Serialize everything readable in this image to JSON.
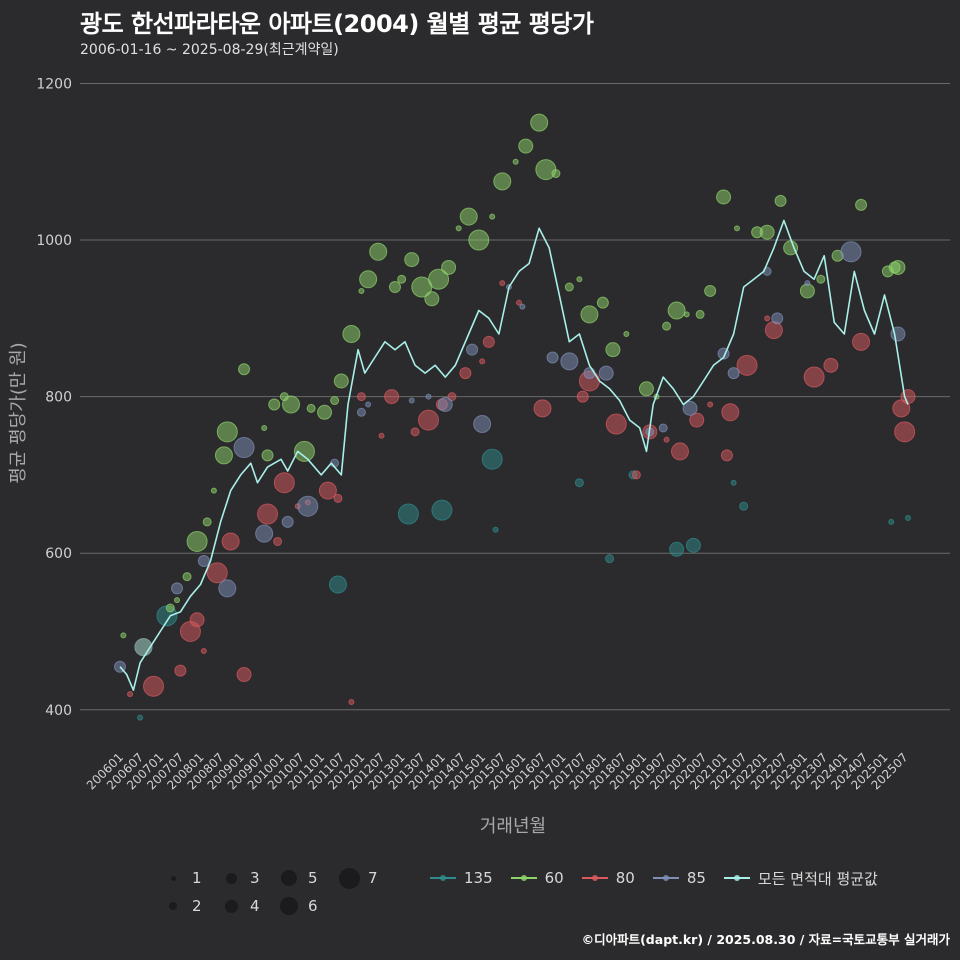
{
  "title": "광도 한선파라타운 아파트(2004) 월별 평균 평당가",
  "subtitle": "2006-01-16 ~ 2025-08-29(최근계약일)",
  "caption": "©디아파트(dapt.kr) / 2025.08.30 / 자료=국토교통부 실거래가",
  "colors": {
    "background": "#2b2b2d",
    "grid": "#6a6a6a",
    "s135": "#2f8c8c",
    "s60": "#8fd36b",
    "s80": "#d9595f",
    "s85": "#7d8fb5",
    "avg": "#a8efe8"
  },
  "legend": {
    "sizes": [
      "1",
      "2",
      "3",
      "4",
      "5",
      "6",
      "7"
    ],
    "series": [
      "135",
      "60",
      "80",
      "85",
      "모든 면적대 평균값"
    ]
  },
  "chart_data": {
    "type": "scatter",
    "title": "광도 한선파라타운 아파트(2004) 월별 평균 평당가",
    "xlabel": "거래년월",
    "ylabel": "평균 평당가(만 원)",
    "ylim": [
      355,
      1230
    ],
    "yticks": [
      400,
      600,
      800,
      1000,
      1200
    ],
    "xrange": [
      "2006-01",
      "2025-08"
    ],
    "xticks": [
      "200601",
      "200607",
      "200701",
      "200707",
      "200801",
      "200807",
      "200901",
      "200907",
      "201001",
      "201007",
      "201101",
      "201107",
      "201201",
      "201207",
      "201301",
      "201307",
      "201401",
      "201407",
      "201501",
      "201507",
      "201601",
      "201607",
      "201701",
      "201707",
      "201801",
      "201807",
      "201901",
      "201907",
      "202001",
      "202007",
      "202101",
      "202107",
      "202201",
      "202207",
      "202301",
      "202307",
      "202401",
      "202407",
      "202501",
      "202507"
    ],
    "grid": "horizontal",
    "legend_position": "bottom",
    "size_legend": [
      1,
      2,
      3,
      4,
      5,
      6,
      7
    ],
    "average_line": {
      "name": "모든 면적대 평균값",
      "points": [
        [
          "2006-01",
          455
        ],
        [
          "2006-03",
          445
        ],
        [
          "2006-05",
          425
        ],
        [
          "2006-07",
          460
        ],
        [
          "2006-10",
          480
        ],
        [
          "2007-01",
          500
        ],
        [
          "2007-04",
          520
        ],
        [
          "2007-07",
          525
        ],
        [
          "2007-10",
          545
        ],
        [
          "2008-01",
          560
        ],
        [
          "2008-04",
          590
        ],
        [
          "2008-07",
          640
        ],
        [
          "2008-10",
          680
        ],
        [
          "2009-01",
          700
        ],
        [
          "2009-04",
          715
        ],
        [
          "2009-06",
          690
        ],
        [
          "2009-09",
          710
        ],
        [
          "2010-01",
          720
        ],
        [
          "2010-03",
          705
        ],
        [
          "2010-06",
          730
        ],
        [
          "2010-09",
          720
        ],
        [
          "2011-01",
          700
        ],
        [
          "2011-04",
          715
        ],
        [
          "2011-07",
          700
        ],
        [
          "2011-09",
          790
        ],
        [
          "2011-12",
          860
        ],
        [
          "2012-02",
          830
        ],
        [
          "2012-05",
          850
        ],
        [
          "2012-08",
          870
        ],
        [
          "2012-11",
          860
        ],
        [
          "2013-02",
          870
        ],
        [
          "2013-05",
          840
        ],
        [
          "2013-08",
          830
        ],
        [
          "2013-11",
          840
        ],
        [
          "2014-02",
          825
        ],
        [
          "2014-05",
          840
        ],
        [
          "2014-09",
          880
        ],
        [
          "2014-12",
          910
        ],
        [
          "2015-03",
          900
        ],
        [
          "2015-06",
          880
        ],
        [
          "2015-09",
          940
        ],
        [
          "2015-12",
          960
        ],
        [
          "2016-03",
          970
        ],
        [
          "2016-06",
          1015
        ],
        [
          "2016-09",
          990
        ],
        [
          "2016-12",
          930
        ],
        [
          "2017-03",
          870
        ],
        [
          "2017-06",
          880
        ],
        [
          "2017-09",
          840
        ],
        [
          "2017-12",
          820
        ],
        [
          "2018-03",
          810
        ],
        [
          "2018-06",
          795
        ],
        [
          "2018-09",
          770
        ],
        [
          "2018-12",
          760
        ],
        [
          "2019-02",
          730
        ],
        [
          "2019-04",
          790
        ],
        [
          "2019-07",
          825
        ],
        [
          "2019-10",
          810
        ],
        [
          "2020-01",
          790
        ],
        [
          "2020-04",
          800
        ],
        [
          "2020-07",
          820
        ],
        [
          "2020-10",
          840
        ],
        [
          "2021-01",
          850
        ],
        [
          "2021-04",
          880
        ],
        [
          "2021-07",
          940
        ],
        [
          "2021-10",
          950
        ],
        [
          "2022-01",
          960
        ],
        [
          "2022-04",
          990
        ],
        [
          "2022-07",
          1025
        ],
        [
          "2022-10",
          990
        ],
        [
          "2023-01",
          960
        ],
        [
          "2023-04",
          950
        ],
        [
          "2023-07",
          980
        ],
        [
          "2023-10",
          895
        ],
        [
          "2024-01",
          880
        ],
        [
          "2024-04",
          960
        ],
        [
          "2024-07",
          910
        ],
        [
          "2024-10",
          880
        ],
        [
          "2025-01",
          930
        ],
        [
          "2025-04",
          880
        ],
        [
          "2025-07",
          800
        ],
        [
          "2025-08",
          790
        ]
      ]
    },
    "series": [
      {
        "name": "135",
        "points": [
          [
            "2006-07",
            390
          ],
          [
            "2007-03",
            520
          ],
          [
            "2011-06",
            560
          ],
          [
            "2013-03",
            650
          ],
          [
            "2014-01",
            655
          ],
          [
            "2015-04",
            720
          ],
          [
            "2015-05",
            630
          ],
          [
            "2017-06",
            690
          ],
          [
            "2018-03",
            593
          ],
          [
            "2018-10",
            700
          ],
          [
            "2019-11",
            605
          ],
          [
            "2020-04",
            610
          ],
          [
            "2021-04",
            690
          ],
          [
            "2021-07",
            660
          ],
          [
            "2025-03",
            640
          ],
          [
            "2025-08",
            645
          ]
        ]
      },
      {
        "name": "60",
        "points": [
          [
            "2006-02",
            495
          ],
          [
            "2006-08",
            480
          ],
          [
            "2007-04",
            530
          ],
          [
            "2007-06",
            540
          ],
          [
            "2007-09",
            570
          ],
          [
            "2007-12",
            615
          ],
          [
            "2008-03",
            640
          ],
          [
            "2008-05",
            680
          ],
          [
            "2008-08",
            725
          ],
          [
            "2008-09",
            755
          ],
          [
            "2009-02",
            835
          ],
          [
            "2009-08",
            760
          ],
          [
            "2009-09",
            725
          ],
          [
            "2009-11",
            790
          ],
          [
            "2010-02",
            800
          ],
          [
            "2010-04",
            790
          ],
          [
            "2010-08",
            730
          ],
          [
            "2010-10",
            785
          ],
          [
            "2011-02",
            780
          ],
          [
            "2011-05",
            795
          ],
          [
            "2011-07",
            820
          ],
          [
            "2011-10",
            880
          ],
          [
            "2012-01",
            935
          ],
          [
            "2012-03",
            950
          ],
          [
            "2012-06",
            985
          ],
          [
            "2012-11",
            940
          ],
          [
            "2013-01",
            950
          ],
          [
            "2013-04",
            975
          ],
          [
            "2013-07",
            940
          ],
          [
            "2013-10",
            925
          ],
          [
            "2013-12",
            950
          ],
          [
            "2014-03",
            965
          ],
          [
            "2014-06",
            1015
          ],
          [
            "2014-09",
            1030
          ],
          [
            "2014-12",
            1000
          ],
          [
            "2015-04",
            1030
          ],
          [
            "2015-07",
            1075
          ],
          [
            "2015-11",
            1100
          ],
          [
            "2016-02",
            1120
          ],
          [
            "2016-06",
            1150
          ],
          [
            "2016-08",
            1090
          ],
          [
            "2016-11",
            1085
          ],
          [
            "2017-03",
            940
          ],
          [
            "2017-06",
            950
          ],
          [
            "2017-09",
            905
          ],
          [
            "2018-01",
            920
          ],
          [
            "2018-04",
            860
          ],
          [
            "2018-08",
            880
          ],
          [
            "2019-02",
            810
          ],
          [
            "2019-05",
            800
          ],
          [
            "2019-08",
            890
          ],
          [
            "2019-11",
            910
          ],
          [
            "2020-02",
            905
          ],
          [
            "2020-06",
            905
          ],
          [
            "2020-09",
            935
          ],
          [
            "2021-01",
            1055
          ],
          [
            "2021-05",
            1015
          ],
          [
            "2021-11",
            1010
          ],
          [
            "2022-02",
            1010
          ],
          [
            "2022-06",
            1050
          ],
          [
            "2022-09",
            990
          ],
          [
            "2023-02",
            935
          ],
          [
            "2023-06",
            950
          ],
          [
            "2023-11",
            980
          ],
          [
            "2024-06",
            1045
          ],
          [
            "2025-02",
            960
          ],
          [
            "2025-04",
            965
          ],
          [
            "2025-05",
            965
          ]
        ]
      },
      {
        "name": "80",
        "points": [
          [
            "2006-04",
            420
          ],
          [
            "2006-11",
            430
          ],
          [
            "2007-07",
            450
          ],
          [
            "2007-10",
            500
          ],
          [
            "2007-12",
            515
          ],
          [
            "2008-02",
            475
          ],
          [
            "2008-06",
            575
          ],
          [
            "2008-10",
            615
          ],
          [
            "2009-02",
            445
          ],
          [
            "2009-09",
            650
          ],
          [
            "2009-12",
            615
          ],
          [
            "2010-02",
            690
          ],
          [
            "2010-06",
            660
          ],
          [
            "2010-09",
            665
          ],
          [
            "2011-03",
            680
          ],
          [
            "2011-06",
            670
          ],
          [
            "2011-10",
            410
          ],
          [
            "2012-01",
            800
          ],
          [
            "2012-07",
            750
          ],
          [
            "2012-10",
            800
          ],
          [
            "2013-05",
            755
          ],
          [
            "2013-09",
            770
          ],
          [
            "2014-01",
            790
          ],
          [
            "2014-04",
            800
          ],
          [
            "2014-08",
            830
          ],
          [
            "2015-01",
            845
          ],
          [
            "2015-03",
            870
          ],
          [
            "2015-07",
            945
          ],
          [
            "2015-12",
            920
          ],
          [
            "2016-07",
            785
          ],
          [
            "2017-07",
            800
          ],
          [
            "2017-09",
            820
          ],
          [
            "2018-05",
            765
          ],
          [
            "2018-11",
            700
          ],
          [
            "2019-03",
            755
          ],
          [
            "2019-08",
            745
          ],
          [
            "2019-12",
            730
          ],
          [
            "2020-05",
            770
          ],
          [
            "2020-09",
            790
          ],
          [
            "2021-02",
            725
          ],
          [
            "2021-03",
            780
          ],
          [
            "2021-08",
            840
          ],
          [
            "2022-02",
            900
          ],
          [
            "2022-04",
            885
          ],
          [
            "2023-04",
            825
          ],
          [
            "2023-09",
            840
          ],
          [
            "2024-06",
            870
          ],
          [
            "2025-06",
            785
          ],
          [
            "2025-07",
            755
          ],
          [
            "2025-08",
            800
          ]
        ]
      },
      {
        "name": "85",
        "points": [
          [
            "2006-01",
            455
          ],
          [
            "2006-08",
            480
          ],
          [
            "2007-06",
            555
          ],
          [
            "2008-02",
            590
          ],
          [
            "2008-09",
            555
          ],
          [
            "2009-02",
            735
          ],
          [
            "2009-08",
            625
          ],
          [
            "2010-03",
            640
          ],
          [
            "2010-09",
            660
          ],
          [
            "2011-05",
            715
          ],
          [
            "2012-01",
            780
          ],
          [
            "2012-03",
            790
          ],
          [
            "2013-04",
            795
          ],
          [
            "2013-09",
            800
          ],
          [
            "2014-02",
            790
          ],
          [
            "2014-10",
            860
          ],
          [
            "2015-01",
            765
          ],
          [
            "2015-09",
            940
          ],
          [
            "2016-01",
            915
          ],
          [
            "2016-10",
            850
          ],
          [
            "2017-03",
            845
          ],
          [
            "2017-09",
            830
          ],
          [
            "2018-02",
            830
          ],
          [
            "2019-03",
            755
          ],
          [
            "2019-07",
            760
          ],
          [
            "2020-03",
            785
          ],
          [
            "2021-01",
            855
          ],
          [
            "2021-04",
            830
          ],
          [
            "2022-02",
            960
          ],
          [
            "2022-05",
            900
          ],
          [
            "2023-02",
            945
          ],
          [
            "2024-03",
            985
          ],
          [
            "2025-05",
            880
          ]
        ]
      }
    ]
  }
}
